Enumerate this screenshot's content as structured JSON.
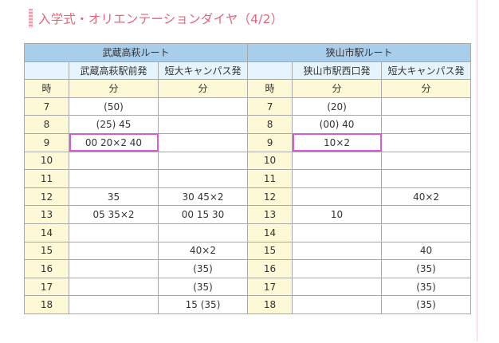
{
  "title": "入学式・オリエンテーションダイヤ（4/2）",
  "routes": [
    {
      "name": "武蔵高萩ルート",
      "stops": [
        "武蔵高萩駅前発",
        "短大キャンパス発"
      ]
    },
    {
      "name": "狭山市駅ルート",
      "stops": [
        "狭山市駅西口発",
        "短大キャンパス発"
      ]
    }
  ],
  "headers": {
    "hour": "時",
    "minute": "分"
  },
  "rows": [
    {
      "hour": "7",
      "cells": [
        "(50)",
        "",
        "(20)",
        ""
      ]
    },
    {
      "hour": "8",
      "cells": [
        "(25) 45",
        "",
        "(00) 40",
        ""
      ]
    },
    {
      "hour": "9",
      "cells": [
        "00 20×2 40",
        "",
        "10×2",
        ""
      ]
    },
    {
      "hour": "10",
      "cells": [
        "",
        "",
        "",
        ""
      ]
    },
    {
      "hour": "11",
      "cells": [
        "",
        "",
        "",
        ""
      ]
    },
    {
      "hour": "12",
      "cells": [
        "35",
        "30 45×2",
        "",
        "40×2"
      ]
    },
    {
      "hour": "13",
      "cells": [
        "05 35×2",
        "00 15 30",
        "10",
        ""
      ]
    },
    {
      "hour": "14",
      "cells": [
        "",
        "",
        "",
        ""
      ]
    },
    {
      "hour": "15",
      "cells": [
        "",
        "40×2",
        "",
        "40"
      ]
    },
    {
      "hour": "16",
      "cells": [
        "",
        "(35)",
        "",
        "(35)"
      ]
    },
    {
      "hour": "17",
      "cells": [
        "",
        "(35)",
        "",
        "(35)"
      ]
    },
    {
      "hour": "18",
      "cells": [
        "",
        "15 (35)",
        "",
        "(35)"
      ]
    }
  ],
  "highlighted": [
    {
      "row": 2,
      "col": 0
    },
    {
      "row": 2,
      "col": 2
    }
  ],
  "colors": {
    "title": "#e8637a",
    "route_header": "#a9ceeb",
    "stop_header": "#e4f3fc",
    "hour_column": "#fdf8d6",
    "highlight": "#d85ad8",
    "border": "#a9a9a9"
  }
}
